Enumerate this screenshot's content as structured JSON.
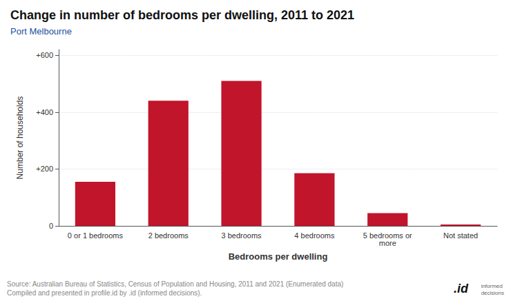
{
  "chart_data": {
    "type": "bar",
    "title": "Change in number of bedrooms per dwelling, 2011 to 2021",
    "subtitle": "Port Melbourne",
    "categories": [
      "0 or 1 bedrooms",
      "2 bedrooms",
      "3 bedrooms",
      "4 bedrooms",
      "5 bedrooms or\nmore",
      "Not stated"
    ],
    "values": [
      155,
      440,
      510,
      185,
      45,
      5
    ],
    "color": "#c0152a",
    "xlabel": "Bedrooms per dwelling",
    "ylabel": "Number of households",
    "ylim": [
      0,
      620
    ],
    "yticks": [
      0,
      {
        "value": 200,
        "label": "+200"
      },
      {
        "value": 400,
        "label": "+400"
      },
      {
        "value": 600,
        "label": "+600"
      }
    ],
    "grid": true,
    "annotations": [
      "Source: Australian Bureau of Statistics, Census of Population and Housing, 2011 and 2021 (Enumerated data)\nCompiled and presented in profile.id by .id (informed decisions).",
      ".id",
      "informed\ndecisions"
    ]
  }
}
